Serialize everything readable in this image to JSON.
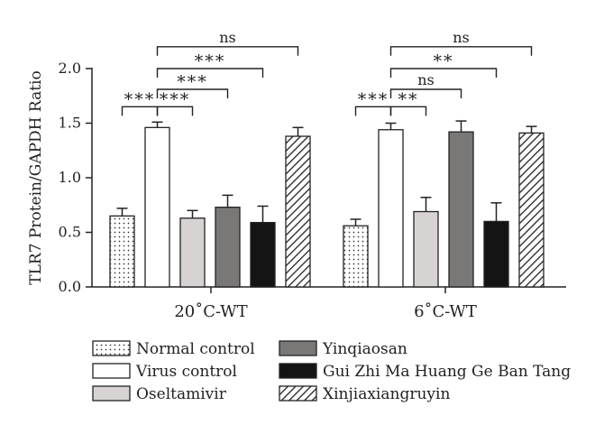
{
  "chart_data": {
    "type": "bar",
    "title": "",
    "ylabel": "TLR7 Protein/GAPDH Ratio",
    "xlabel": "",
    "ylim": [
      0,
      2.0
    ],
    "yticks": [
      "0.0",
      "0.5",
      "1.0",
      "1.5",
      "2.0"
    ],
    "categories": [
      "20˚C-WT",
      "6˚C-WT"
    ],
    "series": [
      {
        "name": "Normal control",
        "pattern": "dots",
        "fill": "#ffffff",
        "values": [
          0.65,
          0.56
        ],
        "errors": [
          0.07,
          0.06
        ]
      },
      {
        "name": "Virus control",
        "pattern": "none",
        "fill": "#ffffff",
        "values": [
          1.46,
          1.44
        ],
        "errors": [
          0.05,
          0.06
        ]
      },
      {
        "name": "Oseltamivir",
        "pattern": "none",
        "fill": "#d6d3d2",
        "values": [
          0.63,
          0.69
        ],
        "errors": [
          0.07,
          0.13
        ]
      },
      {
        "name": "Yinqiaosan",
        "pattern": "none",
        "fill": "#7a7777",
        "values": [
          0.73,
          1.42
        ],
        "errors": [
          0.11,
          0.1
        ]
      },
      {
        "name": "Gui Zhi Ma Huang Ge Ban Tang",
        "pattern": "none",
        "fill": "#141414",
        "values": [
          0.59,
          0.6
        ],
        "errors": [
          0.15,
          0.17
        ]
      },
      {
        "name": "Xinjiaxiangruyin",
        "pattern": "hatch",
        "fill": "#ffffff",
        "values": [
          1.38,
          1.41
        ],
        "errors": [
          0.08,
          0.06
        ]
      }
    ],
    "significance": [
      {
        "group": 0,
        "from": 1,
        "to": 0,
        "label": "***",
        "level": 1.65
      },
      {
        "group": 0,
        "from": 1,
        "to": 2,
        "label": "***",
        "level": 1.65
      },
      {
        "group": 0,
        "from": 1,
        "to": 3,
        "label": "***",
        "level": 1.81
      },
      {
        "group": 0,
        "from": 1,
        "to": 4,
        "label": "***",
        "level": 2.0
      },
      {
        "group": 0,
        "from": 1,
        "to": 5,
        "label": "ns",
        "level": 2.2
      },
      {
        "group": 1,
        "from": 1,
        "to": 0,
        "label": "***",
        "level": 1.65
      },
      {
        "group": 1,
        "from": 1,
        "to": 2,
        "label": "**",
        "level": 1.65
      },
      {
        "group": 1,
        "from": 1,
        "to": 3,
        "label": "ns",
        "level": 1.81
      },
      {
        "group": 1,
        "from": 1,
        "to": 4,
        "label": "**",
        "level": 2.0
      },
      {
        "group": 1,
        "from": 1,
        "to": 5,
        "label": "ns",
        "level": 2.2
      }
    ],
    "legend_position": "bottom",
    "grid": false
  }
}
